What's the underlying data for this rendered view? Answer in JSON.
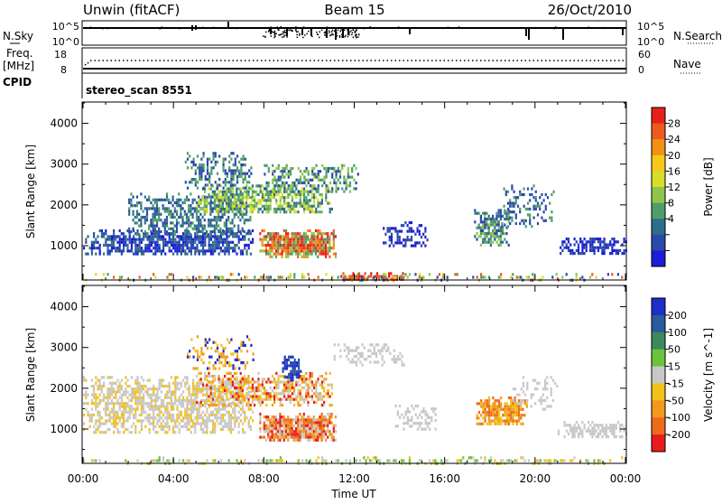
{
  "header": {
    "station": "Unwin (fitACF)",
    "beam": "Beam 15",
    "date": "26/Oct/2010"
  },
  "nsky_panel": {
    "label": "N.Sky",
    "left_ticks": [
      "10^5",
      "10^0"
    ],
    "right_ticks": [
      "10^5",
      "10^0"
    ],
    "right_label": "N.Search"
  },
  "freq_panel": {
    "label_line1": "Freq.",
    "label_line2": "[MHz]",
    "left_ticks": [
      "18",
      "8"
    ],
    "right_ticks": [
      "60",
      "0"
    ],
    "right_label": "Nave",
    "cpid_label": "CPID",
    "cpid_text": "stereo_scan 8551"
  },
  "power_colorbar": {
    "title": "Power [dB]",
    "labels": [
      "28",
      "24",
      "20",
      "16",
      "12",
      "8",
      "4"
    ],
    "colors": [
      "#e8201c",
      "#ee5a1e",
      "#f39015",
      "#f6c81a",
      "#d8dc2a",
      "#8fc64a",
      "#4e9e6a",
      "#2f6e8a",
      "#2a4aaa",
      "#1c1cd6"
    ]
  },
  "velocity_colorbar": {
    "title": "Velocity [m s^-1]",
    "labels": [
      "200",
      "100",
      "50",
      "15",
      "-15",
      "-50",
      "-100",
      "-200"
    ],
    "colors": [
      "#1e2ec8",
      "#2a5aa0",
      "#3c8a5c",
      "#6cc23a",
      "#c8c8c8",
      "#f2c21a",
      "#f29a1c",
      "#ee6a1c",
      "#e81c1c"
    ]
  },
  "chart_data": {
    "type": "heatmap",
    "xlabel": "Time UT",
    "ylabel": "Slant Range [km]",
    "x_ticks": [
      "00:00",
      "04:00",
      "08:00",
      "12:00",
      "16:00",
      "20:00",
      "00:00"
    ],
    "y_ticks": [
      "1000",
      "2000",
      "3000",
      "4000"
    ],
    "xlim": [
      0,
      24
    ],
    "ylim": [
      180,
      4500
    ],
    "panels": [
      {
        "name": "power",
        "regions": [
          {
            "x0": 0.0,
            "x1": 7.5,
            "y0": 800,
            "y1": 1400,
            "colors": [
              "#2a4aaa",
              "#2f6e8a",
              "#1c1cd6"
            ],
            "density": 0.75
          },
          {
            "x0": 2.0,
            "x1": 7.5,
            "y0": 1300,
            "y1": 2300,
            "colors": [
              "#2a4aaa",
              "#4e9e6a",
              "#2f6e8a"
            ],
            "density": 0.6
          },
          {
            "x0": 5.0,
            "x1": 11.0,
            "y0": 1800,
            "y1": 2500,
            "colors": [
              "#4e9e6a",
              "#8fc64a",
              "#2f6e8a",
              "#d8dc2a"
            ],
            "density": 0.7
          },
          {
            "x0": 4.5,
            "x1": 7.5,
            "y0": 2400,
            "y1": 3300,
            "colors": [
              "#2a4aaa",
              "#4e9e6a"
            ],
            "density": 0.4
          },
          {
            "x0": 8.0,
            "x1": 12.2,
            "y0": 2300,
            "y1": 3000,
            "colors": [
              "#2a4aaa",
              "#4e9e6a",
              "#8fc64a"
            ],
            "density": 0.5
          },
          {
            "x0": 7.8,
            "x1": 11.2,
            "y0": 750,
            "y1": 1400,
            "colors": [
              "#e8201c",
              "#ee5a1e",
              "#f39015",
              "#8fc64a",
              "#4e9e6a"
            ],
            "density": 0.95
          },
          {
            "x0": 11.3,
            "x1": 14.3,
            "y0": 150,
            "y1": 350,
            "colors": [
              "#e8201c",
              "#ee5a1e"
            ],
            "density": 0.8
          },
          {
            "x0": 13.0,
            "x1": 15.2,
            "y0": 1000,
            "y1": 1600,
            "colors": [
              "#2a4aaa",
              "#1c1cd6"
            ],
            "density": 0.35
          },
          {
            "x0": 17.3,
            "x1": 18.8,
            "y0": 1000,
            "y1": 1900,
            "colors": [
              "#4e9e6a",
              "#8fc64a",
              "#2f6e8a",
              "#2a4aaa"
            ],
            "density": 0.7
          },
          {
            "x0": 18.5,
            "x1": 20.8,
            "y0": 1500,
            "y1": 2500,
            "colors": [
              "#2a4aaa",
              "#4e9e6a"
            ],
            "density": 0.3
          },
          {
            "x0": 21.0,
            "x1": 24.0,
            "y0": 800,
            "y1": 1200,
            "colors": [
              "#2a4aaa",
              "#1c1cd6"
            ],
            "density": 0.6
          },
          {
            "x0": 0.0,
            "x1": 24.0,
            "y0": 180,
            "y1": 330,
            "colors": [
              "#2a4aaa",
              "#4e9e6a",
              "#8fc64a",
              "#d8dc2a",
              "#ee5a1e"
            ],
            "density": 0.35
          }
        ]
      },
      {
        "name": "velocity",
        "regions": [
          {
            "x0": 0.0,
            "x1": 7.5,
            "y0": 900,
            "y1": 2300,
            "colors": [
              "#c8c8c8",
              "#c8c8c8",
              "#f2c21a"
            ],
            "density": 0.65
          },
          {
            "x0": 5.0,
            "x1": 11.0,
            "y0": 1600,
            "y1": 2400,
            "colors": [
              "#f2c21a",
              "#f29a1c",
              "#c8c8c8",
              "#e81c1c"
            ],
            "density": 0.65
          },
          {
            "x0": 4.5,
            "x1": 7.5,
            "y0": 2500,
            "y1": 3300,
            "colors": [
              "#f29a1c",
              "#f2c21a",
              "#1e2ec8"
            ],
            "density": 0.35
          },
          {
            "x0": 7.8,
            "x1": 11.2,
            "y0": 700,
            "y1": 1400,
            "colors": [
              "#ee6a1c",
              "#e81c1c",
              "#f29a1c",
              "#c8c8c8"
            ],
            "density": 0.95
          },
          {
            "x0": 8.8,
            "x1": 9.6,
            "y0": 2200,
            "y1": 2800,
            "colors": [
              "#1e2ec8",
              "#2a5aa0"
            ],
            "density": 0.8
          },
          {
            "x0": 11.0,
            "x1": 14.2,
            "y0": 2600,
            "y1": 3100,
            "colors": [
              "#c8c8c8"
            ],
            "density": 0.35
          },
          {
            "x0": 13.8,
            "x1": 15.6,
            "y0": 1000,
            "y1": 1600,
            "colors": [
              "#c8c8c8"
            ],
            "density": 0.4
          },
          {
            "x0": 17.4,
            "x1": 19.6,
            "y0": 1100,
            "y1": 1800,
            "colors": [
              "#f29a1c",
              "#ee6a1c",
              "#f2c21a"
            ],
            "density": 0.8
          },
          {
            "x0": 19.0,
            "x1": 21.0,
            "y0": 1500,
            "y1": 2300,
            "colors": [
              "#c8c8c8"
            ],
            "density": 0.3
          },
          {
            "x0": 21.0,
            "x1": 24.0,
            "y0": 800,
            "y1": 1200,
            "colors": [
              "#c8c8c8"
            ],
            "density": 0.6
          },
          {
            "x0": 0.0,
            "x1": 24.0,
            "y0": 180,
            "y1": 330,
            "colors": [
              "#c8c8c8",
              "#6cc23a",
              "#f2c21a"
            ],
            "density": 0.35
          }
        ]
      }
    ],
    "legend": "right"
  }
}
